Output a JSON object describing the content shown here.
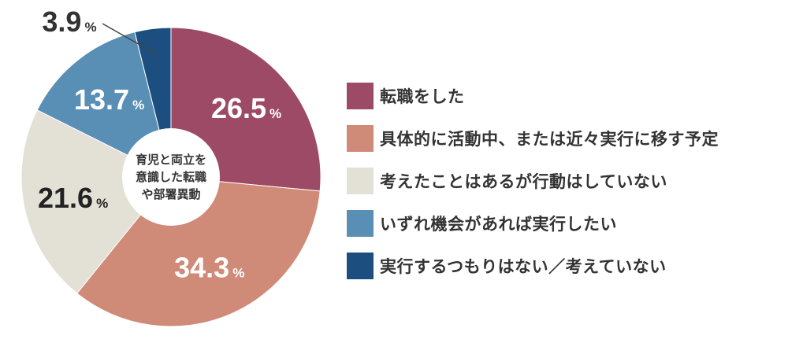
{
  "chart_data": {
    "type": "pie",
    "center_label": [
      "育児と両立を",
      "意識した転職",
      "や部署異動"
    ],
    "percent_sign": "%",
    "slices": [
      {
        "label": "転職をした",
        "value": 26.5,
        "value_text": "26.5",
        "color": "#9c4a66",
        "text_color": "#ffffff"
      },
      {
        "label": "具体的に活動中、または近々実行に移す予定",
        "value": 34.3,
        "value_text": "34.3",
        "color": "#d08a78",
        "text_color": "#ffffff"
      },
      {
        "label": "考えたことはあるが行動はしていない",
        "value": 21.6,
        "value_text": "21.6",
        "color": "#e3e0d6",
        "text_color": "#222222"
      },
      {
        "label": "いずれ機会があれば実行したい",
        "value": 13.7,
        "value_text": "13.7",
        "color": "#5a8fb5",
        "text_color": "#ffffff"
      },
      {
        "label": "実行するつもりはない／考えていない",
        "value": 3.9,
        "value_text": "3.9",
        "color": "#1c4f80",
        "text_color": "#333333"
      }
    ]
  }
}
